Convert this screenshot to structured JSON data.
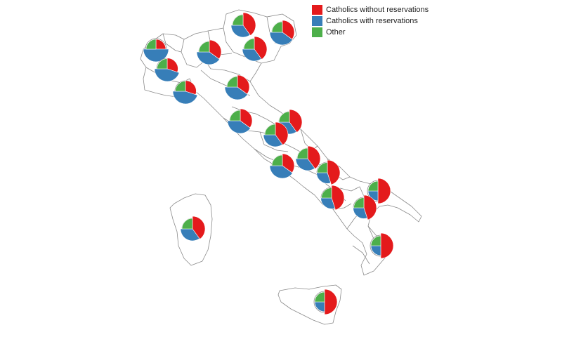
{
  "legend": {
    "items": [
      {
        "key": "without",
        "label": "Catholics without reservations",
        "color": "#e41a1c"
      },
      {
        "key": "with",
        "label": "Catholics with reservations",
        "color": "#377eb8"
      },
      {
        "key": "other",
        "label": "Other",
        "color": "#4daf4a"
      }
    ]
  },
  "chart_data": {
    "type": "pie",
    "series_names": [
      "Catholics without reservations",
      "Catholics with reservations",
      "Other"
    ],
    "regions": [
      {
        "name": "Valle d'Aosta",
        "values": [
          25,
          50,
          25
        ]
      },
      {
        "name": "Trentino-Alto Adige",
        "values": [
          40,
          35,
          25
        ]
      },
      {
        "name": "Friuli-Venezia Giulia",
        "values": [
          35,
          40,
          25
        ]
      },
      {
        "name": "Lombardia",
        "values": [
          35,
          40,
          25
        ]
      },
      {
        "name": "Veneto",
        "values": [
          40,
          35,
          25
        ]
      },
      {
        "name": "Piemonte",
        "values": [
          30,
          45,
          25
        ]
      },
      {
        "name": "Liguria",
        "values": [
          30,
          45,
          25
        ]
      },
      {
        "name": "Emilia-Romagna",
        "values": [
          35,
          40,
          25
        ]
      },
      {
        "name": "Toscana",
        "values": [
          35,
          40,
          25
        ]
      },
      {
        "name": "Marche",
        "values": [
          40,
          35,
          25
        ]
      },
      {
        "name": "Umbria",
        "values": [
          40,
          35,
          25
        ]
      },
      {
        "name": "Lazio",
        "values": [
          35,
          40,
          25
        ]
      },
      {
        "name": "Abruzzo",
        "values": [
          40,
          35,
          25
        ]
      },
      {
        "name": "Molise",
        "values": [
          45,
          30,
          25
        ]
      },
      {
        "name": "Campania",
        "values": [
          45,
          30,
          25
        ]
      },
      {
        "name": "Puglia",
        "values": [
          50,
          25,
          25
        ]
      },
      {
        "name": "Basilicata",
        "values": [
          45,
          30,
          25
        ]
      },
      {
        "name": "Calabria",
        "values": [
          50,
          25,
          25
        ]
      },
      {
        "name": "Sardegna",
        "values": [
          40,
          35,
          25
        ]
      },
      {
        "name": "Sicilia",
        "values": [
          50,
          25,
          25
        ]
      }
    ]
  }
}
